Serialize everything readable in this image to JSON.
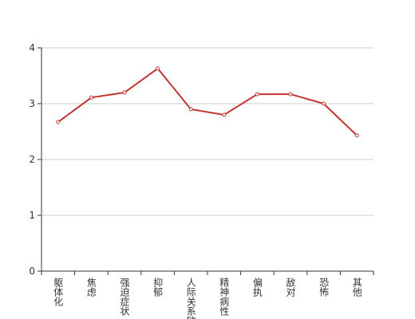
{
  "chart_data": {
    "type": "line",
    "categories": [
      "躯体化",
      "焦虑",
      "强迫症状",
      "抑郁",
      "人际关系敏感",
      "精神病性",
      "偏执",
      "敌对",
      "恐怖",
      "其他"
    ],
    "series": [
      {
        "color": "#c23531",
        "values": [
          2.67,
          3.11,
          3.2,
          3.63,
          2.9,
          2.8,
          3.17,
          3.17,
          3.0,
          2.43
        ]
      }
    ],
    "ylim": [
      0,
      4
    ],
    "yticks": [
      0,
      1,
      2,
      3,
      4
    ],
    "grid": true
  }
}
